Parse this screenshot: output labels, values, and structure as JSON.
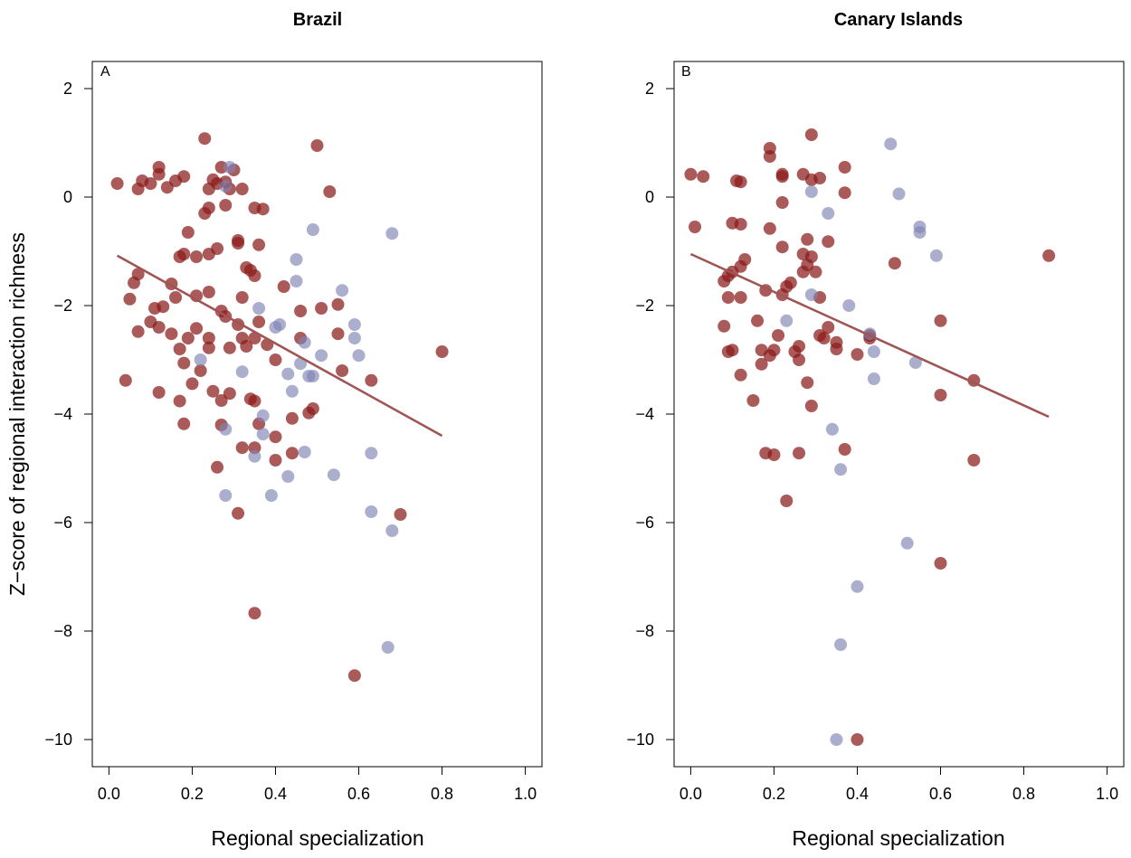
{
  "colors": {
    "red_points": "#8b1a1a",
    "blue_points": "#7f82b3",
    "regression_line": "#a05555",
    "axis": "#000000"
  },
  "y_axis_label": "Z−score of regional interaction richness",
  "chart_data": [
    {
      "type": "scatter",
      "title": "Brazil",
      "panel_letter": "A",
      "xlabel": "Regional specialization",
      "xlim": [
        -0.04,
        1.04
      ],
      "ylim": [
        -10.5,
        2.5
      ],
      "xticks": [
        0.0,
        0.2,
        0.4,
        0.6,
        0.8,
        1.0
      ],
      "xtick_labels": [
        "0.0",
        "0.2",
        "0.4",
        "0.6",
        "0.8",
        "1.0"
      ],
      "yticks": [
        2,
        0,
        -2,
        -4,
        -6,
        -8,
        -10
      ],
      "ytick_labels": [
        "2",
        "0",
        "−2",
        "−4",
        "−6",
        "−8",
        "−10"
      ],
      "regression": {
        "x": [
          0.02,
          0.8
        ],
        "y": [
          -1.08,
          -4.4
        ]
      },
      "series": [
        {
          "color": "#8b1a1a",
          "points": [
            [
              0.02,
              0.25
            ],
            [
              0.07,
              0.15
            ],
            [
              0.08,
              0.3
            ],
            [
              0.1,
              0.25
            ],
            [
              0.12,
              0.55
            ],
            [
              0.12,
              0.42
            ],
            [
              0.14,
              0.18
            ],
            [
              0.16,
              0.3
            ],
            [
              0.18,
              0.38
            ],
            [
              0.23,
              1.08
            ],
            [
              0.24,
              0.15
            ],
            [
              0.25,
              0.32
            ],
            [
              0.26,
              0.25
            ],
            [
              0.27,
              0.55
            ],
            [
              0.28,
              0.28
            ],
            [
              0.29,
              0.15
            ],
            [
              0.3,
              0.5
            ],
            [
              0.32,
              0.15
            ],
            [
              0.5,
              0.95
            ],
            [
              0.53,
              0.1
            ],
            [
              0.23,
              -0.3
            ],
            [
              0.24,
              -0.2
            ],
            [
              0.28,
              -0.15
            ],
            [
              0.35,
              -0.2
            ],
            [
              0.37,
              -0.22
            ],
            [
              0.19,
              -0.65
            ],
            [
              0.17,
              -1.1
            ],
            [
              0.18,
              -1.05
            ],
            [
              0.21,
              -1.1
            ],
            [
              0.24,
              -1.05
            ],
            [
              0.26,
              -0.95
            ],
            [
              0.31,
              -0.8
            ],
            [
              0.31,
              -0.85
            ],
            [
              0.33,
              -1.3
            ],
            [
              0.34,
              -1.35
            ],
            [
              0.35,
              -1.45
            ],
            [
              0.36,
              -0.88
            ],
            [
              0.06,
              -1.58
            ],
            [
              0.07,
              -1.42
            ],
            [
              0.15,
              -1.6
            ],
            [
              0.05,
              -1.88
            ],
            [
              0.11,
              -2.05
            ],
            [
              0.13,
              -2.02
            ],
            [
              0.16,
              -1.85
            ],
            [
              0.21,
              -1.82
            ],
            [
              0.24,
              -1.75
            ],
            [
              0.28,
              -2.2
            ],
            [
              0.32,
              -1.85
            ],
            [
              0.36,
              -2.3
            ],
            [
              0.42,
              -1.65
            ],
            [
              0.46,
              -2.1
            ],
            [
              0.51,
              -2.05
            ],
            [
              0.55,
              -1.98
            ],
            [
              0.07,
              -2.48
            ],
            [
              0.1,
              -2.3
            ],
            [
              0.12,
              -2.4
            ],
            [
              0.15,
              -2.52
            ],
            [
              0.17,
              -2.8
            ],
            [
              0.19,
              -2.6
            ],
            [
              0.21,
              -2.42
            ],
            [
              0.24,
              -2.6
            ],
            [
              0.24,
              -2.78
            ],
            [
              0.27,
              -2.1
            ],
            [
              0.29,
              -2.78
            ],
            [
              0.31,
              -2.35
            ],
            [
              0.32,
              -2.6
            ],
            [
              0.33,
              -2.75
            ],
            [
              0.35,
              -2.6
            ],
            [
              0.38,
              -2.72
            ],
            [
              0.4,
              -3.0
            ],
            [
              0.46,
              -2.6
            ],
            [
              0.55,
              -2.52
            ],
            [
              0.56,
              -3.2
            ],
            [
              0.63,
              -3.38
            ],
            [
              0.8,
              -2.85
            ],
            [
              0.04,
              -3.38
            ],
            [
              0.12,
              -3.6
            ],
            [
              0.17,
              -3.76
            ],
            [
              0.18,
              -3.06
            ],
            [
              0.2,
              -3.44
            ],
            [
              0.22,
              -3.2
            ],
            [
              0.25,
              -3.58
            ],
            [
              0.27,
              -3.75
            ],
            [
              0.29,
              -3.62
            ],
            [
              0.34,
              -3.72
            ],
            [
              0.35,
              -3.76
            ],
            [
              0.18,
              -4.18
            ],
            [
              0.27,
              -4.2
            ],
            [
              0.36,
              -4.18
            ],
            [
              0.44,
              -4.08
            ],
            [
              0.48,
              -3.98
            ],
            [
              0.49,
              -3.9
            ],
            [
              0.26,
              -4.98
            ],
            [
              0.32,
              -4.62
            ],
            [
              0.35,
              -4.62
            ],
            [
              0.4,
              -4.42
            ],
            [
              0.44,
              -4.72
            ],
            [
              0.4,
              -4.85
            ],
            [
              0.31,
              -5.83
            ],
            [
              0.7,
              -5.85
            ],
            [
              0.35,
              -7.67
            ],
            [
              0.59,
              -8.82
            ]
          ]
        },
        {
          "color": "#7f82b3",
          "points": [
            [
              0.29,
              0.55
            ],
            [
              0.28,
              0.2
            ],
            [
              0.49,
              -0.6
            ],
            [
              0.68,
              -0.67
            ],
            [
              0.45,
              -1.15
            ],
            [
              0.45,
              -1.55
            ],
            [
              0.56,
              -1.72
            ],
            [
              0.36,
              -2.05
            ],
            [
              0.4,
              -2.4
            ],
            [
              0.41,
              -2.35
            ],
            [
              0.47,
              -2.68
            ],
            [
              0.51,
              -2.92
            ],
            [
              0.59,
              -2.35
            ],
            [
              0.59,
              -2.6
            ],
            [
              0.6,
              -2.92
            ],
            [
              0.22,
              -3.0
            ],
            [
              0.32,
              -3.22
            ],
            [
              0.43,
              -3.26
            ],
            [
              0.46,
              -3.07
            ],
            [
              0.48,
              -3.3
            ],
            [
              0.49,
              -3.3
            ],
            [
              0.44,
              -3.58
            ],
            [
              0.37,
              -4.03
            ],
            [
              0.37,
              -4.37
            ],
            [
              0.28,
              -4.28
            ],
            [
              0.35,
              -4.78
            ],
            [
              0.47,
              -4.7
            ],
            [
              0.43,
              -5.15
            ],
            [
              0.54,
              -5.12
            ],
            [
              0.63,
              -4.72
            ],
            [
              0.28,
              -5.5
            ],
            [
              0.39,
              -5.5
            ],
            [
              0.63,
              -5.8
            ],
            [
              0.68,
              -6.15
            ],
            [
              0.67,
              -8.3
            ]
          ]
        }
      ]
    },
    {
      "type": "scatter",
      "title": "Canary Islands",
      "panel_letter": "B",
      "xlabel": "Regional specialization",
      "xlim": [
        -0.04,
        1.04
      ],
      "ylim": [
        -10.5,
        2.5
      ],
      "xticks": [
        0.0,
        0.2,
        0.4,
        0.6,
        0.8,
        1.0
      ],
      "xtick_labels": [
        "0.0",
        "0.2",
        "0.4",
        "0.6",
        "0.8",
        "1.0"
      ],
      "yticks": [
        2,
        0,
        -2,
        -4,
        -6,
        -8,
        -10
      ],
      "ytick_labels": [
        "2",
        "0",
        "−2",
        "−4",
        "−6",
        "−8",
        "−10"
      ],
      "regression": {
        "x": [
          0.0,
          0.86
        ],
        "y": [
          -1.05,
          -4.05
        ]
      },
      "series": [
        {
          "color": "#8b1a1a",
          "points": [
            [
              0.0,
              0.42
            ],
            [
              0.03,
              0.38
            ],
            [
              0.11,
              0.3
            ],
            [
              0.12,
              0.28
            ],
            [
              0.19,
              0.9
            ],
            [
              0.19,
              0.75
            ],
            [
              0.22,
              0.42
            ],
            [
              0.22,
              0.38
            ],
            [
              0.27,
              0.42
            ],
            [
              0.29,
              1.15
            ],
            [
              0.29,
              0.32
            ],
            [
              0.31,
              0.35
            ],
            [
              0.37,
              0.55
            ],
            [
              0.37,
              0.08
            ],
            [
              0.22,
              -0.1
            ],
            [
              0.01,
              -0.55
            ],
            [
              0.1,
              -0.48
            ],
            [
              0.12,
              -0.5
            ],
            [
              0.19,
              -0.58
            ],
            [
              0.22,
              -0.92
            ],
            [
              0.27,
              -1.05
            ],
            [
              0.28,
              -0.78
            ],
            [
              0.33,
              -0.82
            ],
            [
              0.49,
              -1.22
            ],
            [
              0.86,
              -1.08
            ],
            [
              0.08,
              -1.55
            ],
            [
              0.09,
              -1.45
            ],
            [
              0.1,
              -1.38
            ],
            [
              0.12,
              -1.28
            ],
            [
              0.13,
              -1.15
            ],
            [
              0.09,
              -1.85
            ],
            [
              0.12,
              -1.85
            ],
            [
              0.18,
              -1.72
            ],
            [
              0.22,
              -1.8
            ],
            [
              0.23,
              -1.65
            ],
            [
              0.24,
              -1.58
            ],
            [
              0.27,
              -1.38
            ],
            [
              0.28,
              -1.25
            ],
            [
              0.29,
              -1.1
            ],
            [
              0.3,
              -1.38
            ],
            [
              0.31,
              -1.85
            ],
            [
              0.6,
              -2.28
            ],
            [
              0.08,
              -2.38
            ],
            [
              0.09,
              -2.85
            ],
            [
              0.1,
              -2.82
            ],
            [
              0.16,
              -2.28
            ],
            [
              0.17,
              -2.82
            ],
            [
              0.19,
              -2.92
            ],
            [
              0.2,
              -2.82
            ],
            [
              0.21,
              -2.55
            ],
            [
              0.25,
              -2.85
            ],
            [
              0.26,
              -2.75
            ],
            [
              0.31,
              -2.55
            ],
            [
              0.32,
              -2.6
            ],
            [
              0.33,
              -2.4
            ],
            [
              0.35,
              -2.68
            ],
            [
              0.35,
              -2.8
            ],
            [
              0.4,
              -2.9
            ],
            [
              0.43,
              -2.55
            ],
            [
              0.43,
              -2.6
            ],
            [
              0.12,
              -3.28
            ],
            [
              0.15,
              -3.75
            ],
            [
              0.17,
              -3.08
            ],
            [
              0.26,
              -3.0
            ],
            [
              0.28,
              -3.42
            ],
            [
              0.29,
              -3.85
            ],
            [
              0.6,
              -3.65
            ],
            [
              0.68,
              -3.38
            ],
            [
              0.18,
              -4.72
            ],
            [
              0.2,
              -4.75
            ],
            [
              0.26,
              -4.72
            ],
            [
              0.37,
              -4.65
            ],
            [
              0.68,
              -4.85
            ],
            [
              0.23,
              -5.6
            ],
            [
              0.6,
              -6.75
            ],
            [
              0.4,
              -10.0
            ]
          ]
        },
        {
          "color": "#7f82b3",
          "points": [
            [
              0.48,
              0.98
            ],
            [
              0.29,
              0.1
            ],
            [
              0.5,
              0.06
            ],
            [
              0.33,
              -0.3
            ],
            [
              0.55,
              -0.55
            ],
            [
              0.55,
              -0.65
            ],
            [
              0.59,
              -1.08
            ],
            [
              0.29,
              -1.8
            ],
            [
              0.38,
              -2.0
            ],
            [
              0.23,
              -2.28
            ],
            [
              0.43,
              -2.52
            ],
            [
              0.44,
              -2.85
            ],
            [
              0.54,
              -3.05
            ],
            [
              0.44,
              -3.35
            ],
            [
              0.34,
              -4.28
            ],
            [
              0.36,
              -5.02
            ],
            [
              0.52,
              -6.38
            ],
            [
              0.4,
              -7.18
            ],
            [
              0.36,
              -8.25
            ],
            [
              0.35,
              -10.0
            ]
          ]
        }
      ]
    }
  ]
}
